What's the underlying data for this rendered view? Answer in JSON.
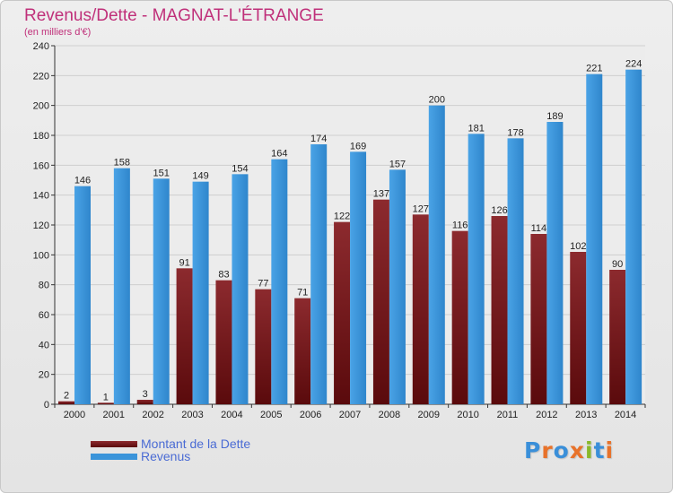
{
  "header": {
    "title": "Revenus/Dette - MAGNAT-L'ÉTRANGE",
    "subtitle": "(en milliers d'€)"
  },
  "legend": {
    "items": [
      {
        "label": "Montant de la Dette",
        "color": "#7a1418"
      },
      {
        "label": "Revenus",
        "color": "#3a94da"
      }
    ]
  },
  "logo": {
    "text": "Proxiti",
    "colors": [
      "#3a8fd9",
      "#e8722a",
      "#3a8fd9",
      "#e8722a",
      "#8ab82a",
      "#3a8fd9",
      "#e8722a"
    ]
  },
  "colors": {
    "title": "#c0307a",
    "debt_top": "#8c2a2e",
    "debt_bottom": "#5a0a0c",
    "revenue": "#3a94da",
    "grid": "#cfcfcf",
    "axis": "#333333"
  },
  "chart_data": {
    "type": "bar",
    "title": "Revenus/Dette - MAGNAT-L'ÉTRANGE",
    "ylabel": "(en milliers d'€)",
    "categories": [
      "2000",
      "2001",
      "2002",
      "2003",
      "2004",
      "2005",
      "2006",
      "2007",
      "2008",
      "2009",
      "2010",
      "2011",
      "2012",
      "2013",
      "2014"
    ],
    "series": [
      {
        "name": "Montant de la Dette",
        "values": [
          2,
          1,
          3,
          91,
          83,
          77,
          71,
          122,
          137,
          127,
          116,
          126,
          114,
          102,
          90
        ]
      },
      {
        "name": "Revenus",
        "values": [
          146,
          158,
          151,
          149,
          154,
          164,
          174,
          169,
          157,
          200,
          181,
          178,
          189,
          221,
          224
        ]
      }
    ],
    "ylim": [
      0,
      240
    ],
    "yticks": [
      0,
      20,
      40,
      60,
      80,
      100,
      120,
      140,
      160,
      180,
      200,
      220,
      240
    ],
    "grid": true,
    "data_labels": true,
    "legend_position": "bottom-left"
  }
}
